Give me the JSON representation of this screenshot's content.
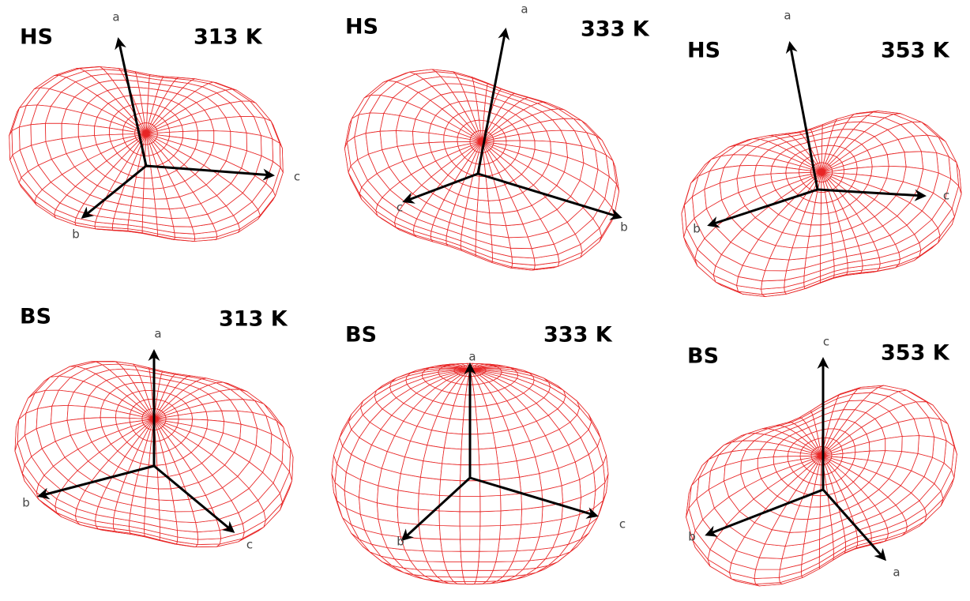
{
  "panels": [
    {
      "mode": "HS",
      "temperature": "313 K",
      "axes": [
        "a",
        "c",
        "b"
      ]
    },
    {
      "mode": "HS",
      "temperature": "333 K",
      "axes": [
        "a",
        "c",
        "b"
      ]
    },
    {
      "mode": "HS",
      "temperature": "353 K",
      "axes": [
        "a",
        "c",
        "b"
      ]
    },
    {
      "mode": "BS",
      "temperature": "313 K",
      "axes": [
        "a",
        "b",
        "c"
      ]
    },
    {
      "mode": "BS",
      "temperature": "333 K",
      "axes": [
        "a",
        "b",
        "c"
      ]
    },
    {
      "mode": "BS",
      "temperature": "353 K",
      "axes": [
        "c",
        "b",
        "a"
      ]
    }
  ]
}
